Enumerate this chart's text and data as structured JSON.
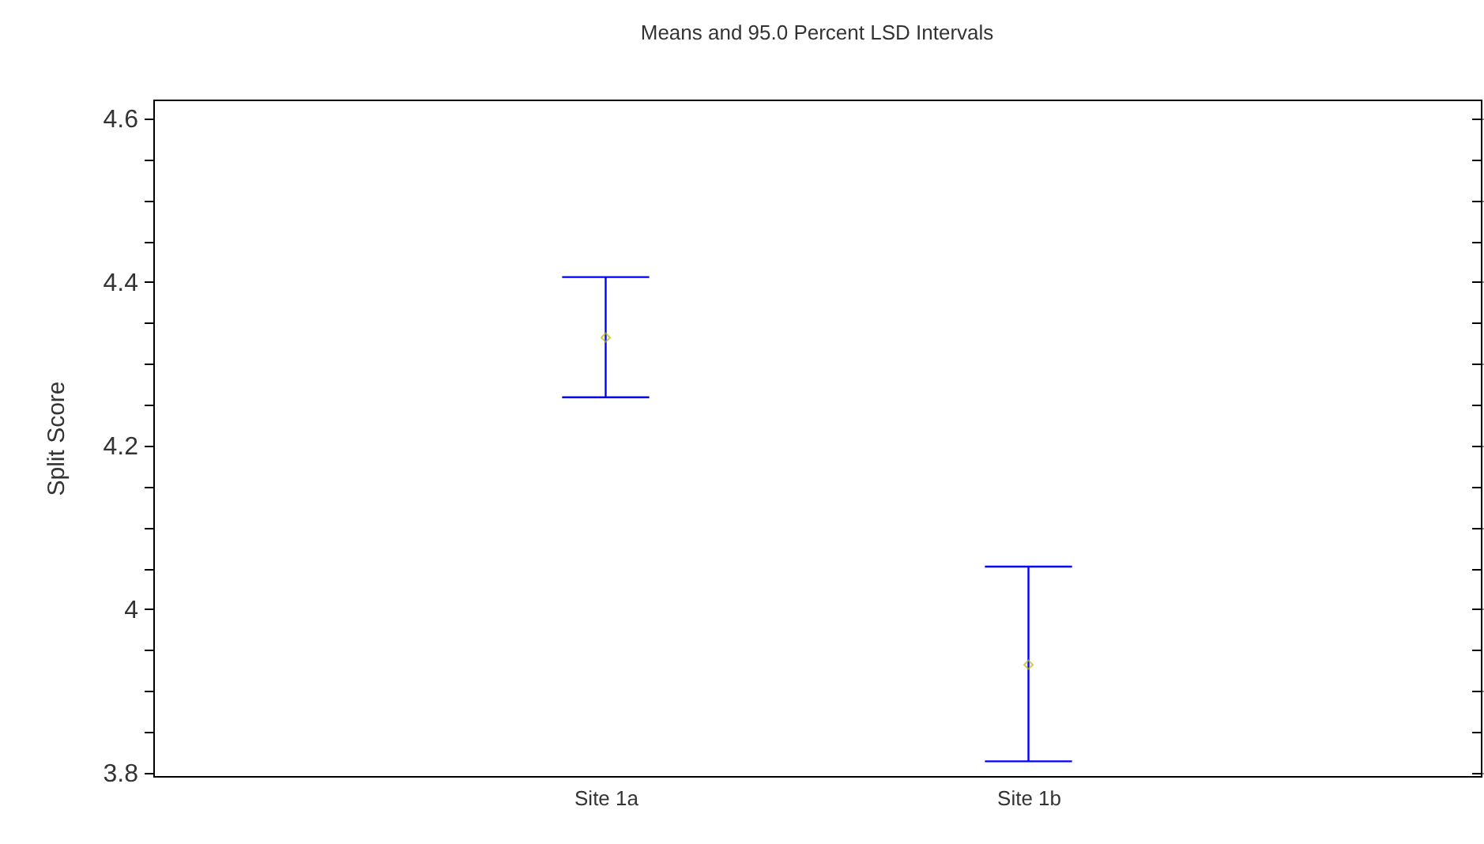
{
  "chart_data": {
    "type": "scatter",
    "title": "Means and 95.0 Percent LSD Intervals",
    "ylabel": "Split Score",
    "categories": [
      "Site 1a",
      "Site 1b"
    ],
    "series": [
      {
        "color": "#b8b800",
        "values": [
          4.332,
          3.932
        ],
        "errors": [
          [
            4.259,
            4.406
          ],
          [
            3.814,
            4.052
          ]
        ]
      }
    ],
    "marker": "diamond",
    "grid": false,
    "ylim": [
      3.796,
      4.623
    ],
    "yticks": [
      3.8,
      {
        "value": 3.85,
        "label": null
      },
      {
        "value": 3.9,
        "label": null
      },
      {
        "value": 3.95,
        "label": null
      },
      4,
      {
        "value": 4.05,
        "label": null
      },
      {
        "value": 4.1,
        "label": null
      },
      {
        "value": 4.15,
        "label": null
      },
      4.2,
      {
        "value": 4.25,
        "label": null
      },
      {
        "value": 4.3,
        "label": null
      },
      {
        "value": 4.35,
        "label": null
      },
      4.4,
      {
        "value": 4.45,
        "label": null
      },
      {
        "value": 4.5,
        "label": null
      },
      {
        "value": 4.55,
        "label": null
      },
      4.6
    ]
  }
}
